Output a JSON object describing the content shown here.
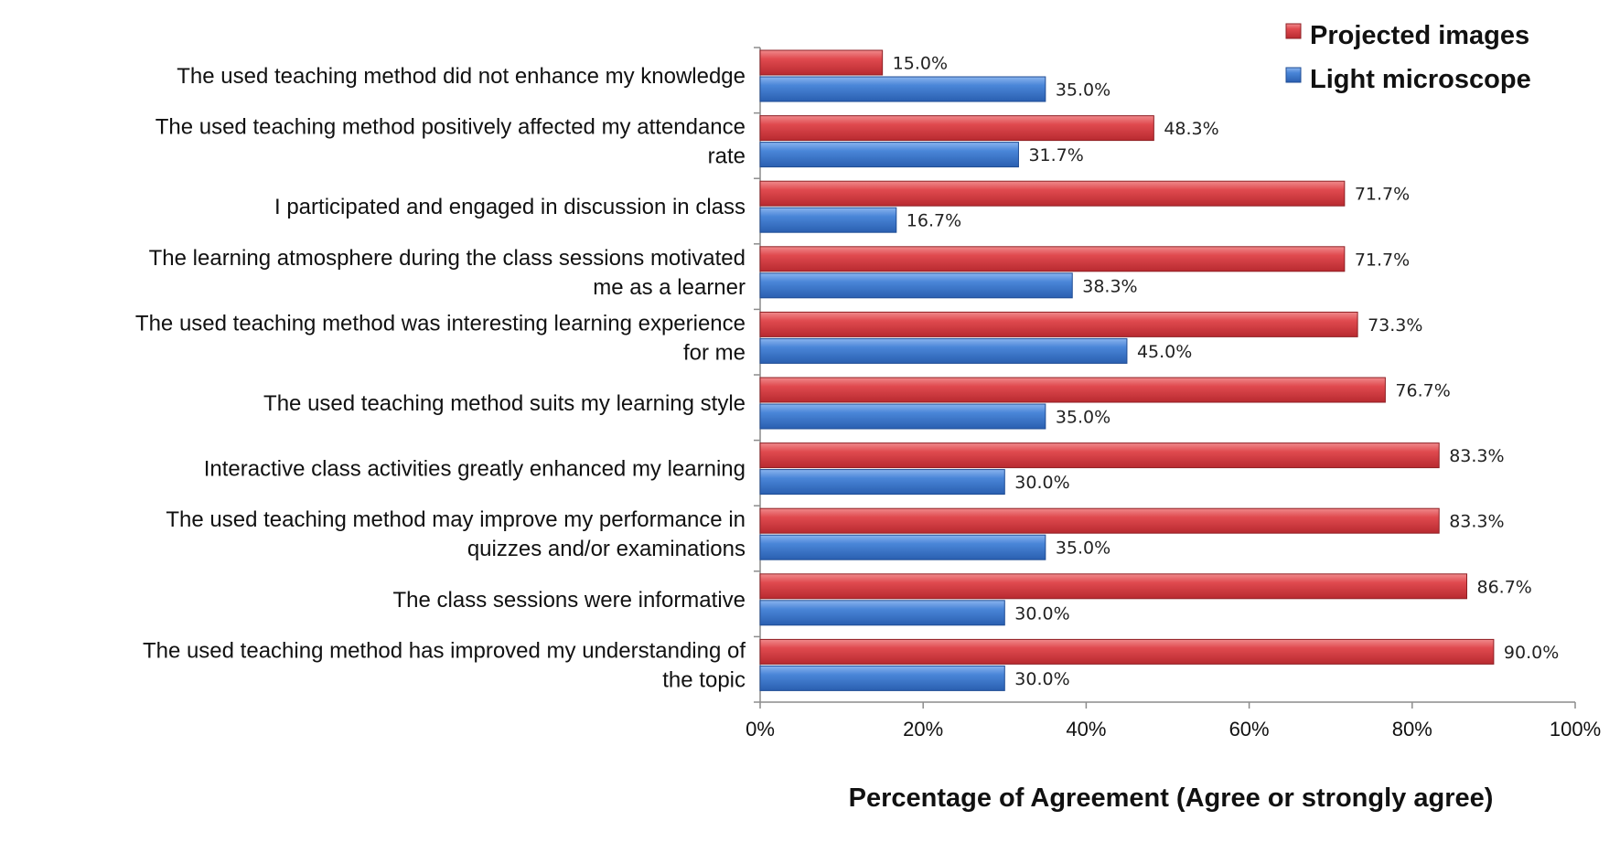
{
  "chart_data": {
    "type": "bar",
    "orientation": "horizontal",
    "categories": [
      "The used teaching method did not enhance my knowledge",
      "The used teaching method positively affected my attendance rate",
      "I participated and engaged in discussion in class",
      "The learning atmosphere during the class sessions motivated me as a learner",
      "The used teaching method was interesting learning experience for me",
      "The used teaching method suits my learning style",
      "Interactive class activities greatly enhanced my learning",
      "The used teaching method may improve my performance in quizzes and/or examinations",
      "The class sessions were informative",
      "The used teaching method has improved my understanding of the topic"
    ],
    "category_lines": [
      [
        "The used teaching method did not enhance my knowledge"
      ],
      [
        "The used teaching method positively affected my attendance",
        "rate"
      ],
      [
        "I participated and engaged in discussion in class"
      ],
      [
        "The learning atmosphere during the class sessions motivated",
        "me as a learner"
      ],
      [
        "The used teaching method was interesting learning experience",
        "for me"
      ],
      [
        "The used teaching method suits my learning style"
      ],
      [
        "Interactive class activities greatly enhanced my learning"
      ],
      [
        "The used teaching method may improve my performance in",
        "quizzes and/or examinations"
      ],
      [
        "The class sessions were informative"
      ],
      [
        "The used teaching method has improved my understanding of",
        "the topic"
      ]
    ],
    "series": [
      {
        "name": "Projected images",
        "color": "#d23a3f",
        "values": [
          15.0,
          48.3,
          71.7,
          71.7,
          73.3,
          76.7,
          83.3,
          83.3,
          86.7,
          90.0
        ],
        "labels": [
          "15.0%",
          "48.3%",
          "71.7%",
          "71.7%",
          "73.3%",
          "76.7%",
          "83.3%",
          "83.3%",
          "86.7%",
          "90.0%"
        ]
      },
      {
        "name": "Light microscope",
        "color": "#3b78d0",
        "values": [
          35.0,
          31.7,
          16.7,
          38.3,
          45.0,
          35.0,
          30.0,
          35.0,
          30.0,
          30.0
        ],
        "labels": [
          "35.0%",
          "31.7%",
          "16.7%",
          "38.3%",
          "45.0%",
          "35.0%",
          "30.0%",
          "35.0%",
          "30.0%",
          "30.0%"
        ]
      }
    ],
    "xlim": [
      0,
      100
    ],
    "xticks": [
      0,
      20,
      40,
      60,
      80,
      100
    ],
    "xtick_labels": [
      "0%",
      "20%",
      "40%",
      "60%",
      "80%",
      "100%"
    ],
    "xlabel": "Percentage of Agreement (Agree or strongly agree)",
    "ylabel": "",
    "grid": false,
    "legend_position": "top-right"
  }
}
